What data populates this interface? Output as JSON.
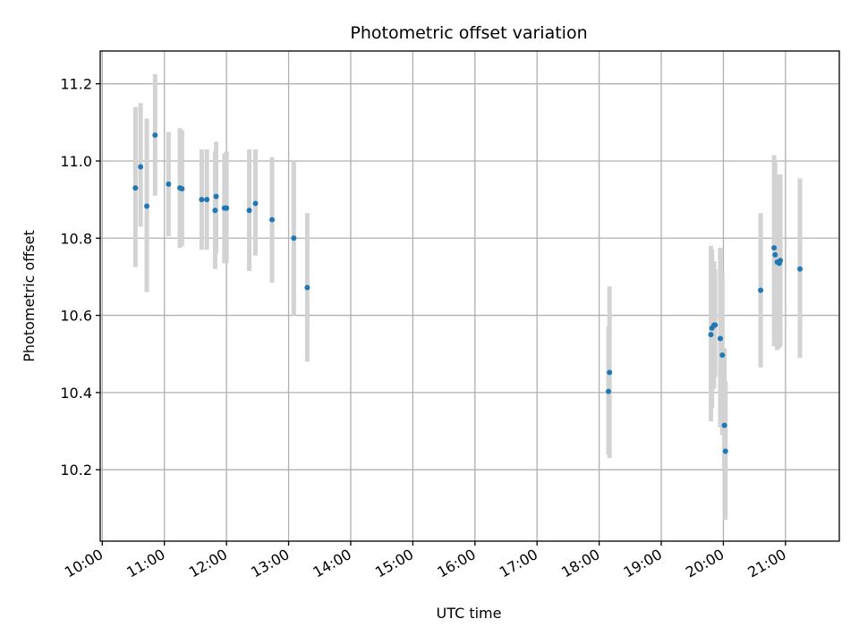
{
  "chart_data": {
    "type": "scatter",
    "title": "Photometric offset variation",
    "xlabel": "UTC time",
    "ylabel": "Photometric offset",
    "xlim": [
      "09:58",
      "21:52"
    ],
    "ylim": [
      10.015,
      11.285
    ],
    "x_ticks": [
      "10:00",
      "11:00",
      "12:00",
      "13:00",
      "14:00",
      "15:00",
      "16:00",
      "17:00",
      "18:00",
      "19:00",
      "20:00",
      "21:00"
    ],
    "y_ticks": [
      10.2,
      10.4,
      10.6,
      10.8,
      11.0,
      11.2
    ],
    "y_tick_labels": [
      "10.2",
      "10.4",
      "10.6",
      "10.8",
      "11.0",
      "11.2"
    ],
    "grid": true,
    "colors": {
      "marker": "#1f77b4",
      "errorbar": "#d3d3d3"
    },
    "series": [
      {
        "points": [
          {
            "x": "10:32",
            "y": 10.93,
            "low": 10.725,
            "high": 11.14
          },
          {
            "x": "10:37",
            "y": 10.985,
            "low": 10.83,
            "high": 11.15
          },
          {
            "x": "10:43",
            "y": 10.883,
            "low": 10.66,
            "high": 11.11
          },
          {
            "x": "10:51",
            "y": 11.067,
            "low": 10.91,
            "high": 11.225
          },
          {
            "x": "11:04",
            "y": 10.94,
            "low": 10.805,
            "high": 11.075
          },
          {
            "x": "11:15",
            "y": 10.93,
            "low": 10.775,
            "high": 11.085
          },
          {
            "x": "11:17",
            "y": 10.928,
            "low": 10.78,
            "high": 11.08
          },
          {
            "x": "11:36",
            "y": 10.9,
            "low": 10.77,
            "high": 11.03
          },
          {
            "x": "11:41",
            "y": 10.9,
            "low": 10.77,
            "high": 11.03
          },
          {
            "x": "11:49",
            "y": 10.872,
            "low": 10.72,
            "high": 11.025
          },
          {
            "x": "11:50",
            "y": 10.908,
            "low": 10.76,
            "high": 11.05
          },
          {
            "x": "11:58",
            "y": 10.878,
            "low": 10.735,
            "high": 11.02
          },
          {
            "x": "12:00",
            "y": 10.878,
            "low": 10.735,
            "high": 11.025
          },
          {
            "x": "12:22",
            "y": 10.872,
            "low": 10.715,
            "high": 11.03
          },
          {
            "x": "12:28",
            "y": 10.89,
            "low": 10.755,
            "high": 11.03
          },
          {
            "x": "12:44",
            "y": 10.848,
            "low": 10.685,
            "high": 11.01
          },
          {
            "x": "13:05",
            "y": 10.8,
            "low": 10.6,
            "high": 11.0
          },
          {
            "x": "13:18",
            "y": 10.672,
            "low": 10.48,
            "high": 10.865
          },
          {
            "x": "18:09",
            "y": 10.403,
            "low": 10.24,
            "high": 10.57
          },
          {
            "x": "18:10",
            "y": 10.452,
            "low": 10.23,
            "high": 10.675
          },
          {
            "x": "19:48",
            "y": 10.55,
            "low": 10.325,
            "high": 10.78
          },
          {
            "x": "19:49",
            "y": 10.567,
            "low": 10.36,
            "high": 10.77
          },
          {
            "x": "19:51",
            "y": 10.575,
            "low": 10.41,
            "high": 10.74
          },
          {
            "x": "19:52",
            "y": 10.575,
            "low": 10.44,
            "high": 10.72
          },
          {
            "x": "19:57",
            "y": 10.54,
            "low": 10.31,
            "high": 10.775
          },
          {
            "x": "19:59",
            "y": 10.497,
            "low": 10.29,
            "high": 10.71
          },
          {
            "x": "20:01",
            "y": 10.315,
            "low": 10.2,
            "high": 10.515
          },
          {
            "x": "20:02",
            "y": 10.248,
            "low": 10.07,
            "high": 10.43
          },
          {
            "x": "20:36",
            "y": 10.665,
            "low": 10.465,
            "high": 10.865
          },
          {
            "x": "20:49",
            "y": 10.775,
            "low": 10.52,
            "high": 11.015
          },
          {
            "x": "20:50",
            "y": 10.757,
            "low": 10.52,
            "high": 11.0
          },
          {
            "x": "20:52",
            "y": 10.738,
            "low": 10.51,
            "high": 10.965
          },
          {
            "x": "20:54",
            "y": 10.735,
            "low": 10.515,
            "high": 10.965
          },
          {
            "x": "20:55",
            "y": 10.742,
            "low": 10.52,
            "high": 10.965
          },
          {
            "x": "21:14",
            "y": 10.72,
            "low": 10.49,
            "high": 10.955
          }
        ]
      }
    ]
  }
}
